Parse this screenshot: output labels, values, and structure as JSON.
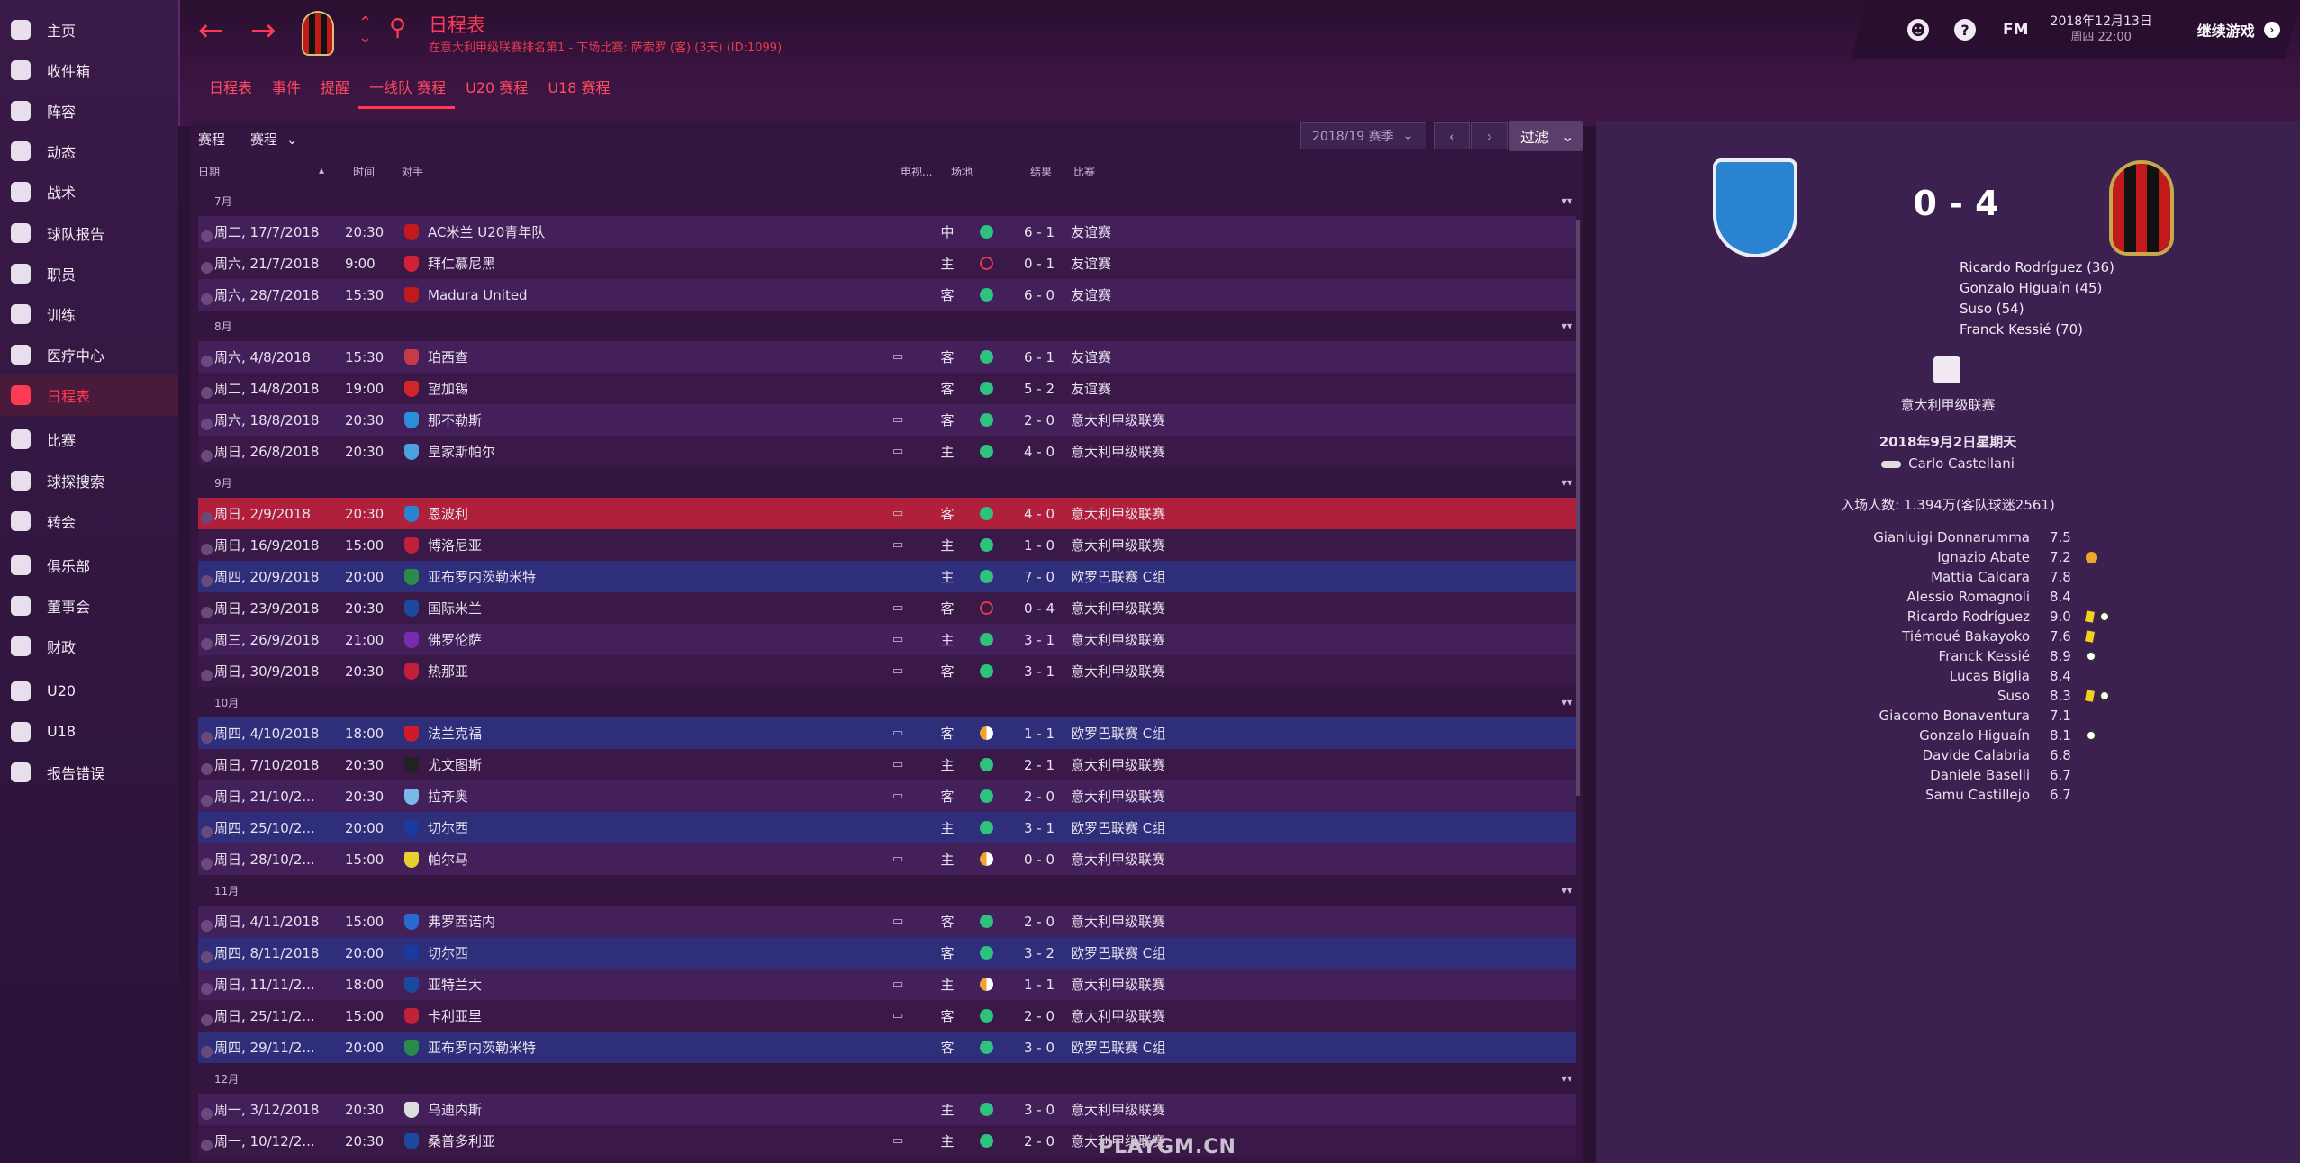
{
  "nav": [
    {
      "label": "主页",
      "icon": "home-icon"
    },
    {
      "label": "收件箱",
      "icon": "inbox-icon"
    },
    {
      "label": "阵容",
      "icon": "squad-icon"
    },
    {
      "label": "动态",
      "icon": "dynamics-icon"
    },
    {
      "label": "战术",
      "icon": "tactics-icon"
    },
    {
      "label": "球队报告",
      "icon": "report-icon"
    },
    {
      "label": "职员",
      "icon": "staff-icon"
    },
    {
      "label": "训练",
      "icon": "training-icon"
    },
    {
      "label": "医疗中心",
      "icon": "medical-icon"
    },
    {
      "label": "日程表",
      "icon": "calendar-icon",
      "active": true
    },
    {
      "label": "比赛",
      "icon": "trophy-icon"
    },
    {
      "label": "球探搜索",
      "icon": "search-icon"
    },
    {
      "label": "转会",
      "icon": "transfer-icon"
    },
    {
      "label": "俱乐部",
      "icon": "club-icon"
    },
    {
      "label": "董事会",
      "icon": "board-icon"
    },
    {
      "label": "财政",
      "icon": "finance-icon"
    },
    {
      "label": "U20",
      "icon": "u20-icon"
    },
    {
      "label": "U18",
      "icon": "u18-icon"
    },
    {
      "label": "报告错误",
      "icon": "alert-icon"
    }
  ],
  "header": {
    "title": "日程表",
    "subtitle": "在意大利甲级联赛排名第1 - 下场比赛: 萨索罗 (客) (3天) (ID:1099)",
    "date": "2018年12月13日",
    "time": "周四 22:00",
    "fm": "FM",
    "continue": "继续游戏"
  },
  "tabs": [
    {
      "label": "日程表"
    },
    {
      "label": "事件"
    },
    {
      "label": "提醒"
    },
    {
      "label": "一线队 赛程",
      "active": true
    },
    {
      "label": "U20 赛程"
    },
    {
      "label": "U18 赛程"
    }
  ],
  "list": {
    "schedule_label": "赛程",
    "filter_label": "赛程",
    "season": "2018/19 赛季",
    "filter_btn": "过滤",
    "cols": {
      "date": "日期",
      "time": "时间",
      "opponent": "对手",
      "tv": "电视...",
      "venue": "场地",
      "result": "结果",
      "comp": "比赛"
    }
  },
  "months": [
    {
      "name": "7月",
      "rows": [
        {
          "date": "周二, 17/7/2018",
          "time": "20:30",
          "opp": "AC米兰 U20青年队",
          "tv": "",
          "venue": "中",
          "result": "6 - 1",
          "comp": "友谊赛",
          "dot": "win",
          "badge": "#c21a1a"
        },
        {
          "date": "周六, 21/7/2018",
          "time": "9:00",
          "opp": "拜仁慕尼黑",
          "tv": "",
          "venue": "主",
          "result": "0 - 1",
          "comp": "友谊赛",
          "dot": "loss",
          "badge": "#d0203a"
        },
        {
          "date": "周六, 28/7/2018",
          "time": "15:30",
          "opp": "Madura United",
          "tv": "",
          "venue": "客",
          "result": "6 - 0",
          "comp": "友谊赛",
          "dot": "win",
          "badge": "#c21a1a"
        }
      ]
    },
    {
      "name": "8月",
      "rows": [
        {
          "date": "周六, 4/8/2018",
          "time": "15:30",
          "opp": "珀西查",
          "tv": "▭",
          "venue": "客",
          "result": "6 - 1",
          "comp": "友谊赛",
          "dot": "win",
          "badge": "#c63a4a"
        },
        {
          "date": "周二, 14/8/2018",
          "time": "19:00",
          "opp": "望加锡",
          "tv": "",
          "venue": "客",
          "result": "5 - 2",
          "comp": "友谊赛",
          "dot": "win",
          "badge": "#d1252a"
        },
        {
          "date": "周六, 18/8/2018",
          "time": "20:30",
          "opp": "那不勒斯",
          "tv": "▭",
          "venue": "客",
          "result": "2 - 0",
          "comp": "意大利甲级联赛",
          "dot": "win",
          "badge": "#2a8fd8"
        },
        {
          "date": "周日, 26/8/2018",
          "time": "20:30",
          "opp": "皇家斯帕尔",
          "tv": "▭",
          "venue": "主",
          "result": "4 - 0",
          "comp": "意大利甲级联赛",
          "dot": "win",
          "badge": "#4aa0e0"
        }
      ]
    },
    {
      "name": "9月",
      "rows": [
        {
          "date": "周日, 2/9/2018",
          "time": "20:30",
          "opp": "恩波利",
          "tv": "▭",
          "venue": "客",
          "result": "4 - 0",
          "comp": "意大利甲级联赛",
          "dot": "win",
          "badge": "#2a83d0",
          "selected": true
        },
        {
          "date": "周日, 16/9/2018",
          "time": "15:00",
          "opp": "博洛尼亚",
          "tv": "▭",
          "venue": "主",
          "result": "1 - 0",
          "comp": "意大利甲级联赛",
          "dot": "win",
          "badge": "#c0203a"
        },
        {
          "date": "周四, 20/9/2018",
          "time": "20:00",
          "opp": "亚布罗内茨勒米特",
          "tv": "",
          "venue": "主",
          "result": "7 - 0",
          "comp": "欧罗巴联赛 C组",
          "dot": "win",
          "badge": "#2a8a4a",
          "euro": true
        },
        {
          "date": "周日, 23/9/2018",
          "time": "20:30",
          "opp": "国际米兰",
          "tv": "▭",
          "venue": "客",
          "result": "0 - 4",
          "comp": "意大利甲级联赛",
          "dot": "loss",
          "badge": "#1a4aa0"
        },
        {
          "date": "周三, 26/9/2018",
          "time": "21:00",
          "opp": "佛罗伦萨",
          "tv": "▭",
          "venue": "主",
          "result": "3 - 1",
          "comp": "意大利甲级联赛",
          "dot": "win",
          "badge": "#7a2ab0"
        },
        {
          "date": "周日, 30/9/2018",
          "time": "20:30",
          "opp": "热那亚",
          "tv": "▭",
          "venue": "客",
          "result": "3 - 1",
          "comp": "意大利甲级联赛",
          "dot": "win",
          "badge": "#c0203a"
        }
      ]
    },
    {
      "name": "10月",
      "rows": [
        {
          "date": "周四, 4/10/2018",
          "time": "18:00",
          "opp": "法兰克福",
          "tv": "▭",
          "venue": "客",
          "result": "1 - 1",
          "comp": "欧罗巴联赛 C组",
          "dot": "draw",
          "badge": "#d01a2a",
          "euro": true
        },
        {
          "date": "周日, 7/10/2018",
          "time": "20:30",
          "opp": "尤文图斯",
          "tv": "▭",
          "venue": "主",
          "result": "2 - 1",
          "comp": "意大利甲级联赛",
          "dot": "win",
          "badge": "#222222"
        },
        {
          "date": "周日, 21/10/2...",
          "time": "20:30",
          "opp": "拉齐奥",
          "tv": "▭",
          "venue": "客",
          "result": "2 - 0",
          "comp": "意大利甲级联赛",
          "dot": "win",
          "badge": "#7ab8e8"
        },
        {
          "date": "周四, 25/10/2...",
          "time": "20:00",
          "opp": "切尔西",
          "tv": "",
          "venue": "主",
          "result": "3 - 1",
          "comp": "欧罗巴联赛 C组",
          "dot": "win",
          "badge": "#1a3aa0",
          "euro": true
        },
        {
          "date": "周日, 28/10/2...",
          "time": "15:00",
          "opp": "帕尔马",
          "tv": "▭",
          "venue": "主",
          "result": "0 - 0",
          "comp": "意大利甲级联赛",
          "dot": "draw",
          "badge": "#e8d030"
        }
      ]
    },
    {
      "name": "11月",
      "rows": [
        {
          "date": "周日, 4/11/2018",
          "time": "15:00",
          "opp": "弗罗西诺内",
          "tv": "▭",
          "venue": "客",
          "result": "2 - 0",
          "comp": "意大利甲级联赛",
          "dot": "win",
          "badge": "#2a6ad0"
        },
        {
          "date": "周四, 8/11/2018",
          "time": "20:00",
          "opp": "切尔西",
          "tv": "",
          "venue": "客",
          "result": "3 - 2",
          "comp": "欧罗巴联赛 C组",
          "dot": "win",
          "badge": "#1a3aa0",
          "euro": true
        },
        {
          "date": "周日, 11/11/2...",
          "time": "18:00",
          "opp": "亚特兰大",
          "tv": "▭",
          "venue": "主",
          "result": "1 - 1",
          "comp": "意大利甲级联赛",
          "dot": "draw",
          "badge": "#1a4aa0"
        },
        {
          "date": "周日, 25/11/2...",
          "time": "15:00",
          "opp": "卡利亚里",
          "tv": "▭",
          "venue": "客",
          "result": "2 - 0",
          "comp": "意大利甲级联赛",
          "dot": "win",
          "badge": "#c0203a"
        },
        {
          "date": "周四, 29/11/2...",
          "time": "20:00",
          "opp": "亚布罗内茨勒米特",
          "tv": "",
          "venue": "客",
          "result": "3 - 0",
          "comp": "欧罗巴联赛 C组",
          "dot": "win",
          "badge": "#2a8a4a",
          "euro": true
        }
      ]
    },
    {
      "name": "12月",
      "rows": [
        {
          "date": "周一, 3/12/2018",
          "time": "20:30",
          "opp": "乌迪内斯",
          "tv": "",
          "venue": "主",
          "result": "3 - 0",
          "comp": "意大利甲级联赛",
          "dot": "win",
          "badge": "#dddddd"
        },
        {
          "date": "周一, 10/12/2...",
          "time": "20:30",
          "opp": "桑普多利亚",
          "tv": "▭",
          "venue": "主",
          "result": "2 - 0",
          "comp": "意大利甲级联赛",
          "dot": "win",
          "badge": "#1a4aa0"
        }
      ]
    }
  ],
  "detail": {
    "score": "0 - 4",
    "scorers": [
      "Ricardo Rodríguez (36)",
      "Gonzalo Higuaín (45)",
      "Suso (54)",
      "Franck Kessié (70)"
    ],
    "league": "意大利甲级联赛",
    "date": "2018年9月2日星期天",
    "referee": "Carlo Castellani",
    "attendance": "入场人数: 1.394万(客队球迷2561)",
    "players": [
      {
        "name": "Gianluigi Donnarumma",
        "rating": "7.5",
        "icons": []
      },
      {
        "name": "Ignazio Abate",
        "rating": "7.2",
        "icons": [
          "sub"
        ]
      },
      {
        "name": "Mattia Caldara",
        "rating": "7.8",
        "icons": []
      },
      {
        "name": "Alessio Romagnoli",
        "rating": "8.4",
        "icons": []
      },
      {
        "name": "Ricardo Rodríguez",
        "rating": "9.0",
        "icons": [
          "yc",
          "ball"
        ]
      },
      {
        "name": "Tiémoué Bakayoko",
        "rating": "7.6",
        "icons": [
          "yc"
        ]
      },
      {
        "name": "Franck Kessié",
        "rating": "8.9",
        "icons": [
          "ball"
        ]
      },
      {
        "name": "Lucas Biglia",
        "rating": "8.4",
        "icons": []
      },
      {
        "name": "Suso",
        "rating": "8.3",
        "icons": [
          "yc",
          "ball"
        ]
      },
      {
        "name": "Giacomo Bonaventura",
        "rating": "7.1",
        "icons": []
      },
      {
        "name": "Gonzalo Higuaín",
        "rating": "8.1",
        "icons": [
          "ball"
        ]
      },
      {
        "name": "Davide Calabria",
        "rating": "6.8",
        "icons": []
      },
      {
        "name": "Daniele Baselli",
        "rating": "6.7",
        "icons": []
      },
      {
        "name": "Samu Castillejo",
        "rating": "6.7",
        "icons": []
      }
    ]
  },
  "watermark": "PLAYGM.CN",
  "colors": {
    "accent": "#ff3a55",
    "win": "#2ec27e",
    "loss": "#e0394a",
    "draw": "#f0a330",
    "row_dark": "#3a1848",
    "row_light": "#43205a",
    "euro_row": "#2e2e7a",
    "selected_row": "#b0203a"
  }
}
